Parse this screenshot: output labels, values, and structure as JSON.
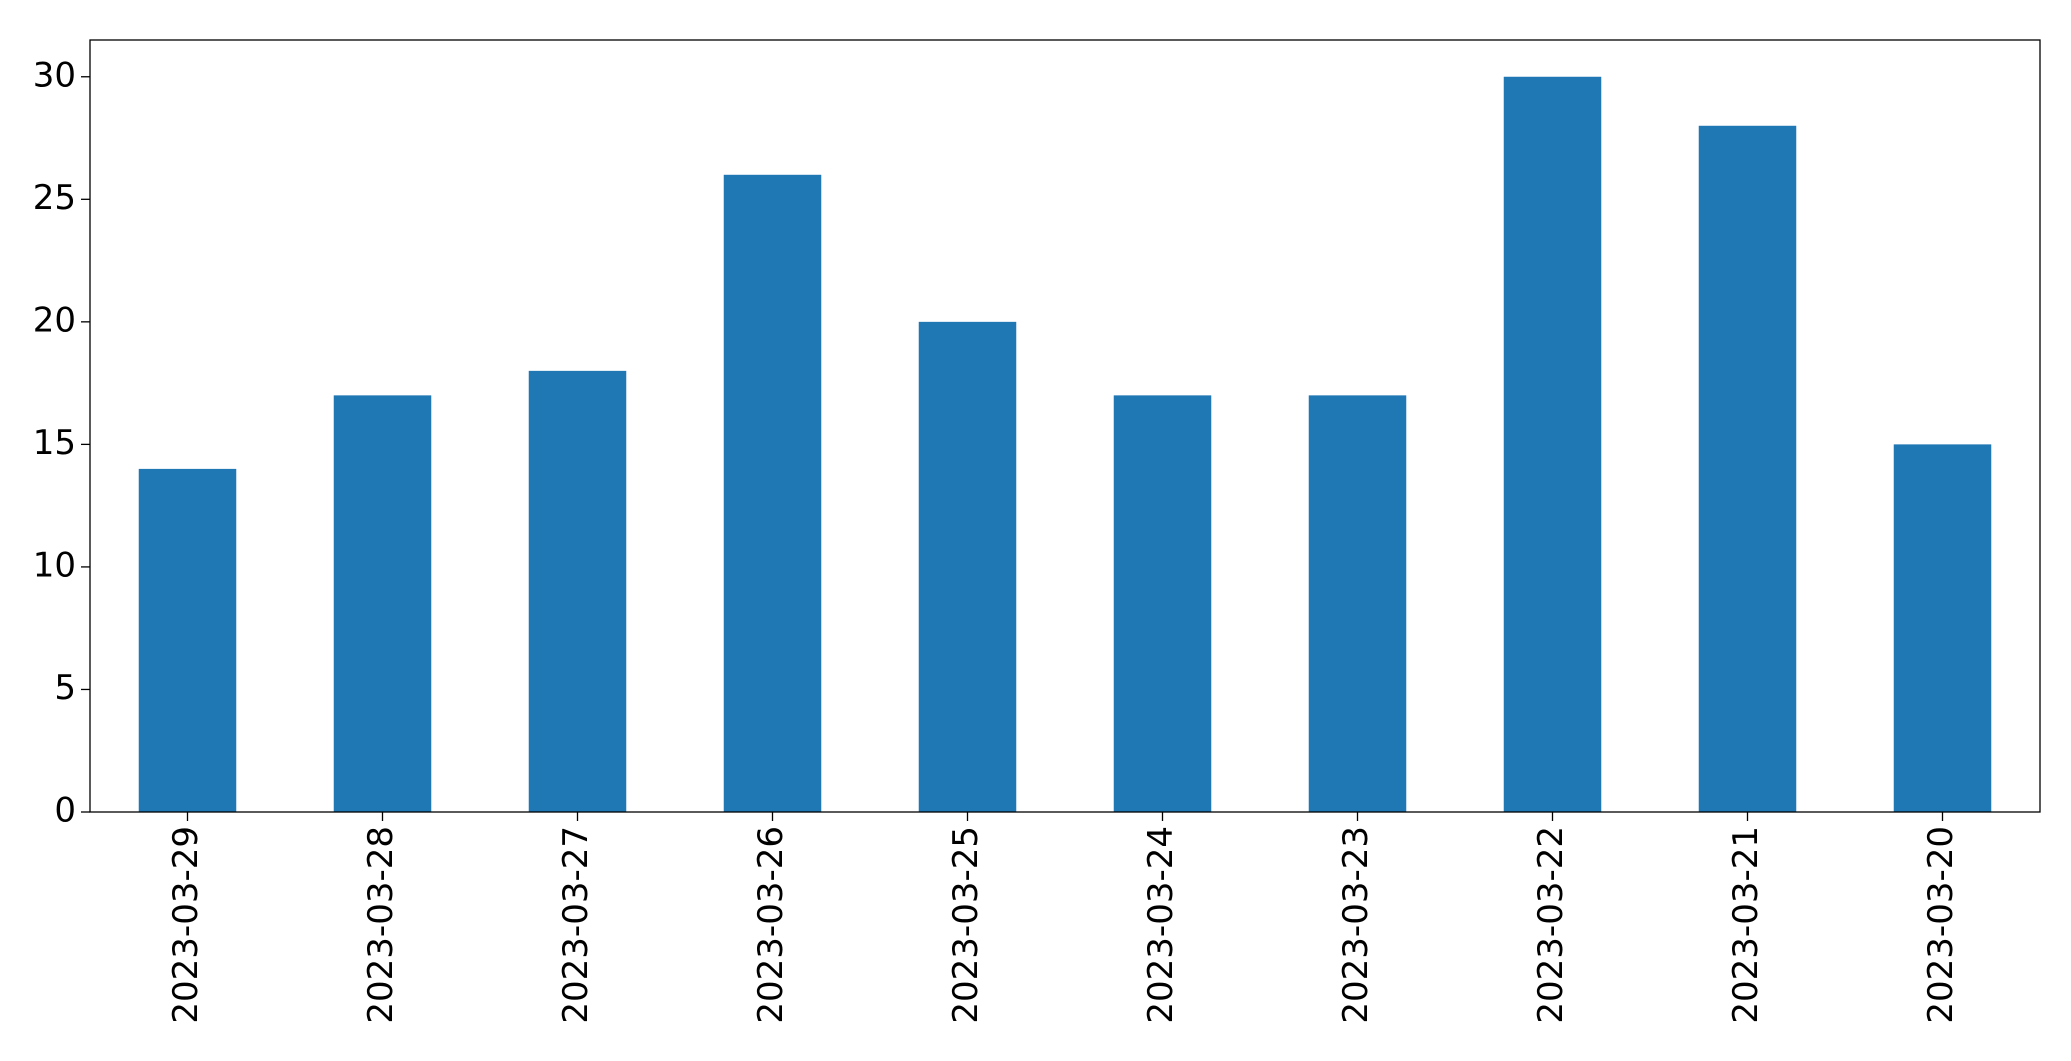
{
  "chart_data": {
    "type": "bar",
    "categories": [
      "2023-03-29",
      "2023-03-28",
      "2023-03-27",
      "2023-03-26",
      "2023-03-25",
      "2023-03-24",
      "2023-03-23",
      "2023-03-22",
      "2023-03-21",
      "2023-03-20"
    ],
    "values": [
      14,
      17,
      18,
      26,
      20,
      17,
      17,
      30,
      28,
      15
    ],
    "color": "#1f77b4",
    "ylim": [
      0,
      31.5
    ],
    "yticks": [
      0,
      5,
      10,
      15,
      20,
      25,
      30
    ],
    "grid": false
  }
}
